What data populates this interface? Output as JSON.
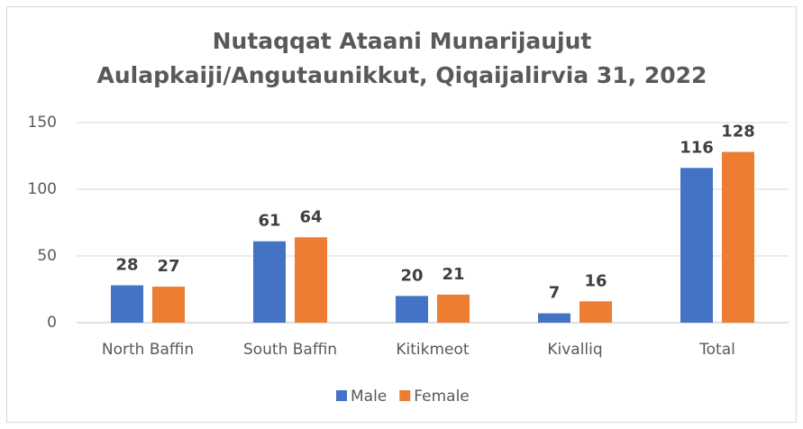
{
  "chart_data": {
    "type": "bar",
    "title": [
      "Nutaqqat Ataani Munarijaujut",
      "Aulapkaiji/Angutaunikkut, Qiqaijalirvia 31, 2022"
    ],
    "categories": [
      "North Baffin",
      "South Baffin",
      "Kitikmeot",
      "Kivalliq",
      "Total"
    ],
    "series": [
      {
        "name": "Male",
        "color": "#4472c4",
        "values": [
          28,
          61,
          20,
          7,
          116
        ]
      },
      {
        "name": "Female",
        "color": "#ed7d31",
        "values": [
          27,
          64,
          21,
          16,
          128
        ]
      }
    ],
    "ylim": [
      0,
      150
    ],
    "yticks": [
      0,
      50,
      100,
      150
    ],
    "grid": true,
    "legend": "bottom"
  }
}
